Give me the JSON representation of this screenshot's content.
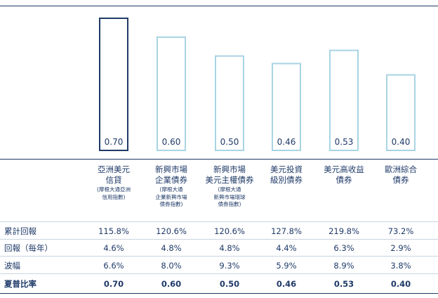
{
  "chart_data": {
    "type": "bar",
    "categories": [
      {
        "name": "亞洲美元\n信貸",
        "sub": "(摩根大通亞洲\n信用指數)"
      },
      {
        "name": "新興市場\n企業債券",
        "sub": "(摩根大通\n企業新興市場\n債券指數)"
      },
      {
        "name": "新興市場\n美元主權債券",
        "sub": "(摩根大通\n新興市場環球\n債券指數)"
      },
      {
        "name": "美元投資\n級別債券",
        "sub": ""
      },
      {
        "name": "美元高收益\n債券",
        "sub": ""
      },
      {
        "name": "歐洲綜合\n債券",
        "sub": ""
      }
    ],
    "values": [
      0.7,
      0.6,
      0.5,
      0.46,
      0.53,
      0.4
    ],
    "value_labels": [
      "0.70",
      "0.60",
      "0.50",
      "0.46",
      "0.53",
      "0.40"
    ],
    "highlight_index": 0,
    "colors": {
      "highlight": "#1f3a68",
      "normal": "#a8d4e4",
      "text": "#1f3a68",
      "rule": "#c9d4e0"
    }
  },
  "table": {
    "rows": [
      {
        "label": "累計回報",
        "bold": false,
        "values": [
          "115.8%",
          "120.6%",
          "120.6%",
          "127.8%",
          "219.8%",
          "73.2%"
        ]
      },
      {
        "label": "回報（每年）",
        "bold": false,
        "values": [
          "4.6%",
          "4.8%",
          "4.8%",
          "4.4%",
          "6.3%",
          "2.9%"
        ]
      },
      {
        "label": "波幅",
        "bold": false,
        "values": [
          "6.6%",
          "8.0%",
          "9.3%",
          "5.9%",
          "8.9%",
          "3.8%"
        ]
      },
      {
        "label": "夏普比率",
        "bold": true,
        "values": [
          "0.70",
          "0.60",
          "0.50",
          "0.46",
          "0.53",
          "0.40"
        ]
      }
    ]
  }
}
